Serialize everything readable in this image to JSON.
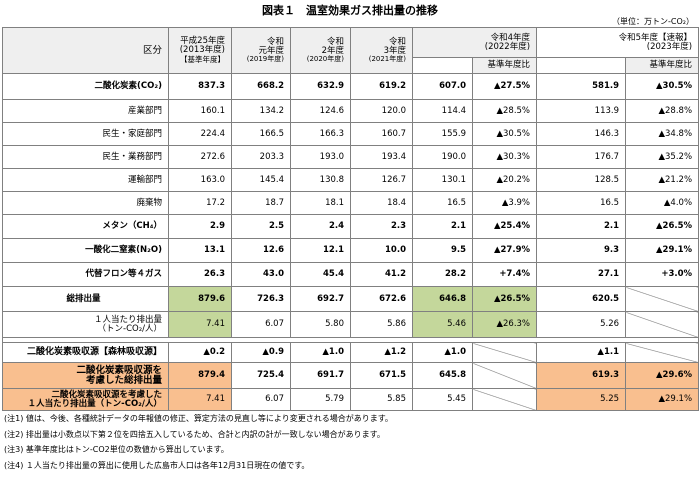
{
  "title": "図表１　温室効果ガス排出量の推移",
  "unit": "（単位：万トン-CO₂）",
  "header": {
    "kubun": "区分",
    "h25": [
      "平成25年度",
      "(2013年度)",
      "【基準年度】"
    ],
    "r1": [
      "令和",
      "元年度",
      "(2019年度)"
    ],
    "r2": [
      "令和",
      "2年度",
      "(2020年度)"
    ],
    "r3": [
      "令和",
      "3年度",
      "(2021年度)"
    ],
    "r4": [
      "令和4年度",
      "(2022年度)"
    ],
    "r5": [
      "令和5年度【速報】",
      "(2023年度)"
    ],
    "ratio": "基準年度比"
  },
  "rows": [
    {
      "label": "二酸化炭素(CO₂)",
      "v": [
        "837.3",
        "668.2",
        "632.9",
        "619.2",
        "607.0",
        "▲27.5%",
        "581.9",
        "▲30.5%"
      ]
    },
    {
      "label": "産業部門",
      "v": [
        "160.1",
        "134.2",
        "124.6",
        "120.0",
        "114.4",
        "▲28.5%",
        "113.9",
        "▲28.8%"
      ]
    },
    {
      "label": "民生・家庭部門",
      "v": [
        "224.4",
        "166.5",
        "166.3",
        "160.7",
        "155.9",
        "▲30.5%",
        "146.3",
        "▲34.8%"
      ]
    },
    {
      "label": "民生・業務部門",
      "v": [
        "272.6",
        "203.3",
        "193.0",
        "193.4",
        "190.0",
        "▲30.3%",
        "176.7",
        "▲35.2%"
      ]
    },
    {
      "label": "運輸部門",
      "v": [
        "163.0",
        "145.4",
        "130.8",
        "126.7",
        "130.1",
        "▲20.2%",
        "128.5",
        "▲21.2%"
      ]
    },
    {
      "label": "廃棄物",
      "v": [
        "17.2",
        "18.7",
        "18.1",
        "18.4",
        "16.5",
        "▲3.9%",
        "16.5",
        "▲4.0%"
      ]
    },
    {
      "label": "メタン（CH₄）",
      "v": [
        "2.9",
        "2.5",
        "2.4",
        "2.3",
        "2.1",
        "▲25.4%",
        "2.1",
        "▲26.5%"
      ]
    },
    {
      "label": "一酸化二窒素(N₂O)",
      "v": [
        "13.1",
        "12.6",
        "12.1",
        "10.0",
        "9.5",
        "▲27.9%",
        "9.3",
        "▲29.1%"
      ]
    },
    {
      "label": "代替フロン等４ガス",
      "v": [
        "26.3",
        "43.0",
        "45.4",
        "41.2",
        "28.2",
        "+7.4%",
        "27.1",
        "+3.0%"
      ]
    }
  ],
  "total": {
    "label": "総排出量",
    "v": [
      "879.6",
      "726.3",
      "692.7",
      "672.6",
      "646.8",
      "▲26.5%",
      "620.5"
    ]
  },
  "percap": {
    "label": [
      "１人当たり排出量",
      "（トン-CO₂/人）"
    ],
    "v": [
      "7.41",
      "6.07",
      "5.80",
      "5.86",
      "5.46",
      "▲26.3%",
      "5.26"
    ]
  },
  "forest": {
    "label": "二酸化炭素吸収源【森林吸収源】",
    "v": [
      "▲0.2",
      "▲0.9",
      "▲1.0",
      "▲1.2",
      "▲1.0",
      "▲1.1"
    ]
  },
  "net": {
    "label": [
      "二酸化炭素吸収源を",
      "考慮した総排出量"
    ],
    "v": [
      "879.4",
      "725.4",
      "691.7",
      "671.5",
      "645.8",
      "619.3",
      "▲29.6%"
    ]
  },
  "netpercap": {
    "label": [
      "二酸化炭素吸収源を考慮した",
      "１人当たり排出量（トン-CO₂/人）"
    ],
    "v": [
      "7.41",
      "6.07",
      "5.79",
      "5.85",
      "5.45",
      "5.25",
      "▲29.1%"
    ]
  },
  "notes": [
    "(注1) 値は、今後、各種統計データの年報値の修正、算定方法の見直し等により変更される場合があります。",
    "(注2) 排出量は小数点以下第２位を四捨五入しているため、合計と内訳の計が一致しない場合があります。",
    "(注3) 基準年度比はトン-CO2単位の数値から算出しています。",
    "(注4) １人当たり排出量の算出に使用した広島市人口は各年12月31日現在の値です。"
  ]
}
